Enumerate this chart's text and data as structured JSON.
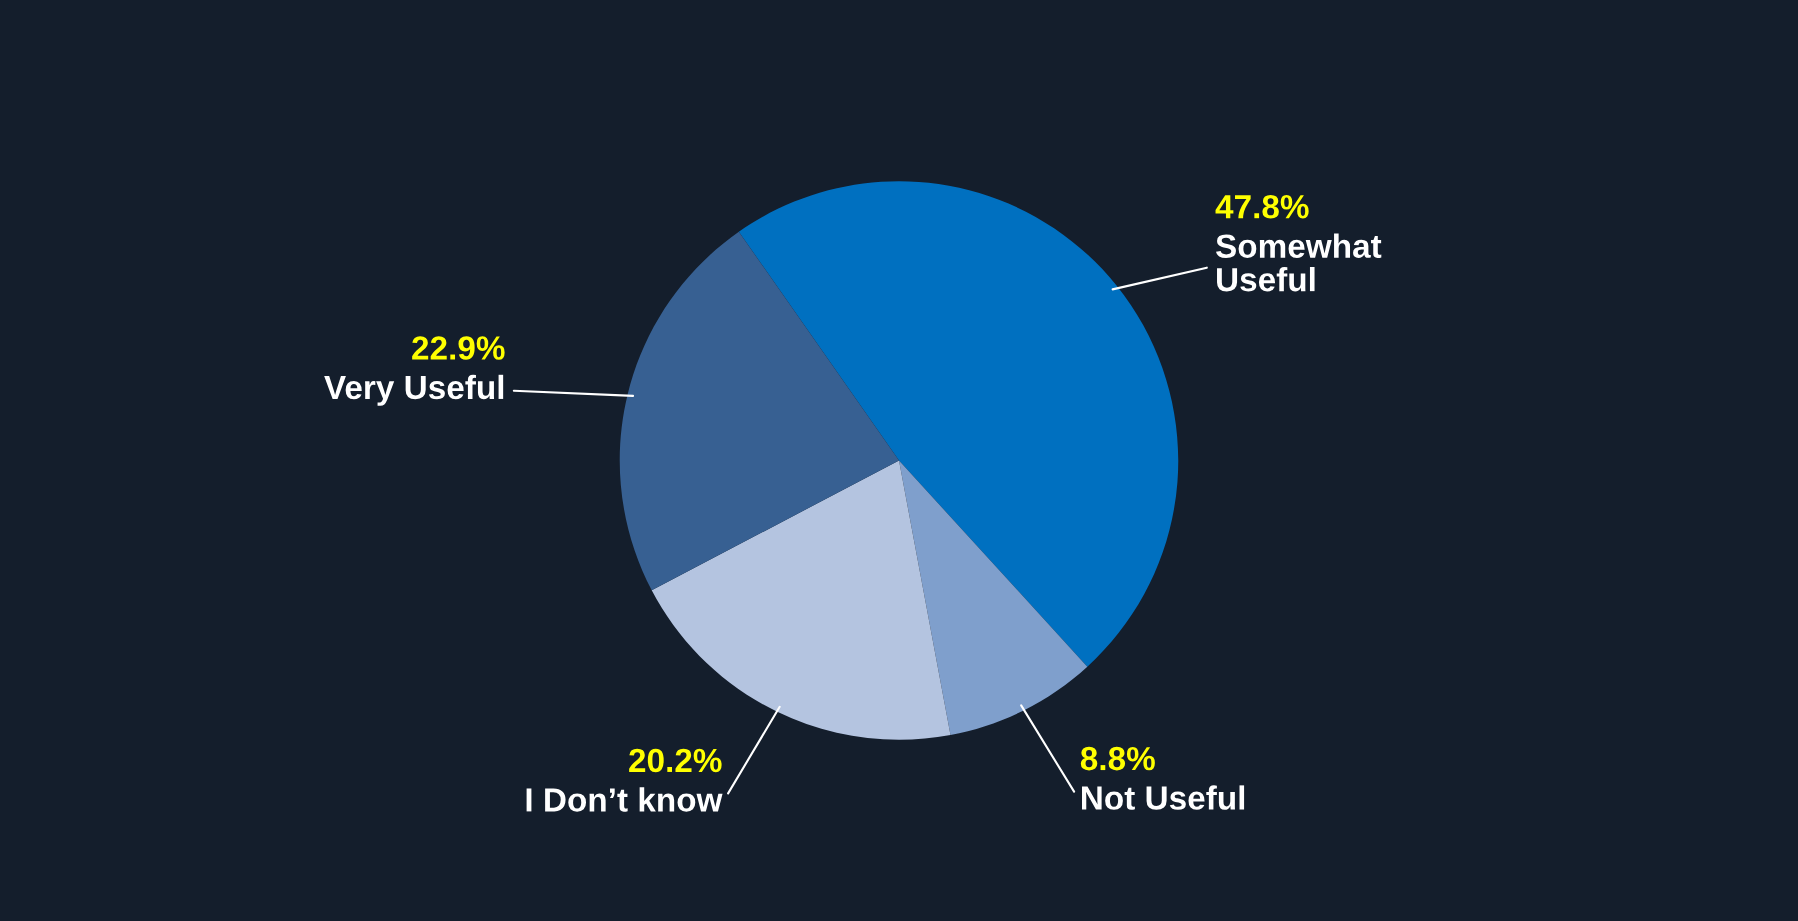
{
  "chart_data": {
    "type": "pie",
    "categories": [
      "Somewhat\nUseful",
      "Not Useful",
      "I Don’t know",
      "Very Useful"
    ],
    "values": [
      47.8,
      8.8,
      20.2,
      22.9
    ],
    "value_labels": [
      "47.8%",
      "8.8%",
      "20.2%",
      "22.9%"
    ],
    "colors": [
      "#0070c0",
      "#7f9fcc",
      "#b4c4e0",
      "#376092"
    ]
  }
}
